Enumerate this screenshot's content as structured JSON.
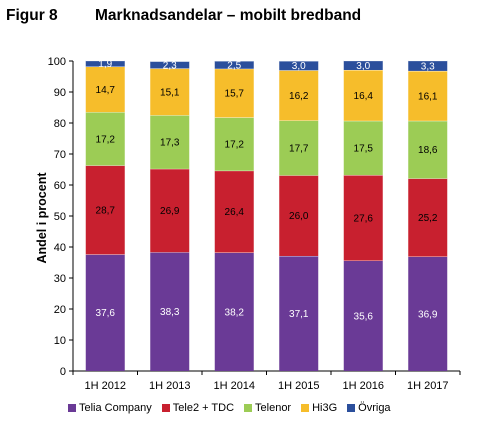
{
  "figure": {
    "number": "Figur 8",
    "title": "Marknadsandelar – mobilt bredband"
  },
  "chart_data": {
    "type": "bar",
    "stacked": true,
    "title": "Marknadsandelar – mobilt bredband",
    "xlabel": "",
    "ylabel": "Andel i procent",
    "ylim": [
      0,
      100
    ],
    "yticks": [
      "0",
      "10",
      "20",
      "30",
      "40",
      "50",
      "60",
      "70",
      "80",
      "90",
      "100"
    ],
    "categories": [
      "1H 2012",
      "1H 2013",
      "1H 2014",
      "1H 2015",
      "1H 2016",
      "1H 2017"
    ],
    "series": [
      {
        "name": "Telia Company",
        "color": "#6a3a96",
        "label_color": "#ffffff",
        "values": [
          37.6,
          38.3,
          38.2,
          37.1,
          35.6,
          36.9
        ],
        "labels": [
          "37,6",
          "38,3",
          "38,2",
          "37,1",
          "35,6",
          "36,9"
        ]
      },
      {
        "name": "Tele2 + TDC",
        "color": "#c8202f",
        "label_color": "#000000",
        "values": [
          28.7,
          26.9,
          26.4,
          26.0,
          27.6,
          25.2
        ],
        "labels": [
          "28,7",
          "26,9",
          "26,4",
          "26,0",
          "27,6",
          "25,2"
        ]
      },
      {
        "name": "Telenor",
        "color": "#9ccc55",
        "label_color": "#000000",
        "values": [
          17.2,
          17.3,
          17.2,
          17.7,
          17.5,
          18.6
        ],
        "labels": [
          "17,2",
          "17,3",
          "17,2",
          "17,7",
          "17,5",
          "18,6"
        ]
      },
      {
        "name": "Hi3G",
        "color": "#f6bd2b",
        "label_color": "#000000",
        "values": [
          14.7,
          15.1,
          15.7,
          16.2,
          16.4,
          16.1
        ],
        "labels": [
          "14,7",
          "15,1",
          "15,7",
          "16,2",
          "16,4",
          "16,1"
        ]
      },
      {
        "name": "Övriga",
        "color": "#2b4f9c",
        "label_color": "#ffffff",
        "values": [
          1.9,
          2.3,
          2.5,
          3.0,
          3.0,
          3.3
        ],
        "labels": [
          "1,9",
          "2,3",
          "2,5",
          "3,0",
          "3,0",
          "3,3"
        ]
      }
    ],
    "grid": false,
    "legend_position": "bottom"
  }
}
